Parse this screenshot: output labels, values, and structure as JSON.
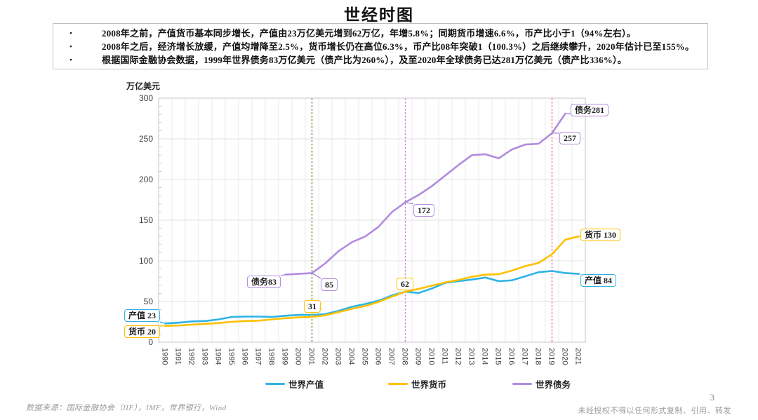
{
  "page": {
    "title": "世经时图",
    "page_number": "3",
    "footer_left": "数据来源：国际金融协会（IIF），IMF，世界银行，Wind",
    "footer_right": "未经授权不得以任何形式复制、引用、转发"
  },
  "summary_box": {
    "bullets": [
      "2008年之前，产值货币基本同步增长，产值由23万亿美元增到62万亿，年增5.8%；同期货币增速6.6%，币产比小于1（94%左右）。",
      "2008年之后，经济增长放缓，产值均增降至2.5%，货币增长仍在高位6.3%，币产比08年突破1（100.3%）之后继续攀升，2020年估计已至155%。",
      "根据国际金融协会数据，1999年世界债务83万亿美元（债产比为260%），及至2020年全球债务已达281万亿美元（债产比336%）。"
    ]
  },
  "chart_data": {
    "type": "line",
    "title": "世经时图",
    "y_axis_label": "万亿美元",
    "ylim": [
      0,
      300
    ],
    "y_ticks": [
      0,
      50,
      100,
      150,
      200,
      250,
      300
    ],
    "grid": true,
    "legend_position": "bottom",
    "x": [
      1990,
      1991,
      1992,
      1993,
      1994,
      1995,
      1996,
      1997,
      1998,
      1999,
      2000,
      2001,
      2002,
      2003,
      2004,
      2005,
      2006,
      2007,
      2008,
      2009,
      2010,
      2011,
      2012,
      2013,
      2014,
      2015,
      2016,
      2017,
      2018,
      2019,
      2020,
      2021
    ],
    "series": [
      {
        "name": "世界产值",
        "color": "#2eb3e6",
        "values": [
          23,
          24,
          25.5,
          26,
          28,
          31,
          31.5,
          31.5,
          31,
          32.5,
          33.5,
          33.5,
          34.5,
          38.5,
          43.5,
          47,
          51,
          57.5,
          62,
          60.5,
          66,
          73,
          75,
          77,
          79.5,
          75,
          76,
          81,
          86,
          87.5,
          85,
          84
        ]
      },
      {
        "name": "世界货币",
        "color": "#ffc000",
        "values": [
          20,
          20.5,
          21.5,
          22.5,
          23.5,
          25,
          26,
          26.5,
          28,
          29.5,
          30.5,
          31,
          33,
          37,
          41,
          44.5,
          49.5,
          56,
          62,
          65.5,
          69.5,
          73.5,
          76.5,
          80.5,
          83,
          83.5,
          88,
          93.5,
          97.5,
          108,
          126,
          130
        ]
      },
      {
        "name": "世界债务",
        "color": "#b18cdd",
        "values": [
          null,
          null,
          null,
          null,
          null,
          null,
          null,
          null,
          null,
          83,
          84,
          85,
          97,
          112,
          123,
          130,
          142,
          160,
          172,
          181,
          192,
          205,
          218,
          230,
          231,
          226,
          237,
          243,
          244,
          257,
          281,
          null
        ]
      }
    ],
    "vlines": [
      {
        "year": 2001,
        "color": "#4e7d28"
      },
      {
        "year": 2008,
        "color": "#c678d6"
      },
      {
        "year": 2019,
        "color": "#e56a6a"
      }
    ],
    "annotations": [
      {
        "text": "产值 23",
        "series": 0,
        "year": 1990,
        "value": 23,
        "bx": 177,
        "by": 441
      },
      {
        "text": "货币 20",
        "series": 1,
        "year": 1990,
        "value": 20,
        "bx": 177,
        "by": 464
      },
      {
        "text": "债务83",
        "series": 2,
        "year": 1999,
        "value": 83,
        "bx": 352,
        "by": 393
      },
      {
        "text": "85",
        "series": 2,
        "year": 2001,
        "value": 85,
        "bx": 457,
        "by": 397
      },
      {
        "text": "31",
        "series": 1,
        "year": 2001,
        "value": 31,
        "bx": 433,
        "by": 428
      },
      {
        "text": "62",
        "series": 1,
        "year": 2008,
        "value": 62,
        "bx": 565,
        "by": 396
      },
      {
        "text": "172",
        "series": 2,
        "year": 2008,
        "value": 172,
        "bx": 589,
        "by": 291
      },
      {
        "text": "257",
        "series": 2,
        "year": 2019,
        "value": 257,
        "bx": 797,
        "by": 188
      },
      {
        "text": "债务281",
        "series": 2,
        "year": 2020,
        "value": 281,
        "bx": 813,
        "by": 148
      },
      {
        "text": "货币 130",
        "series": 1,
        "year": 2021,
        "value": 130,
        "bx": 827,
        "by": 326
      },
      {
        "text": "产值 84",
        "series": 0,
        "year": 2021,
        "value": 84,
        "bx": 827,
        "by": 391
      }
    ]
  }
}
